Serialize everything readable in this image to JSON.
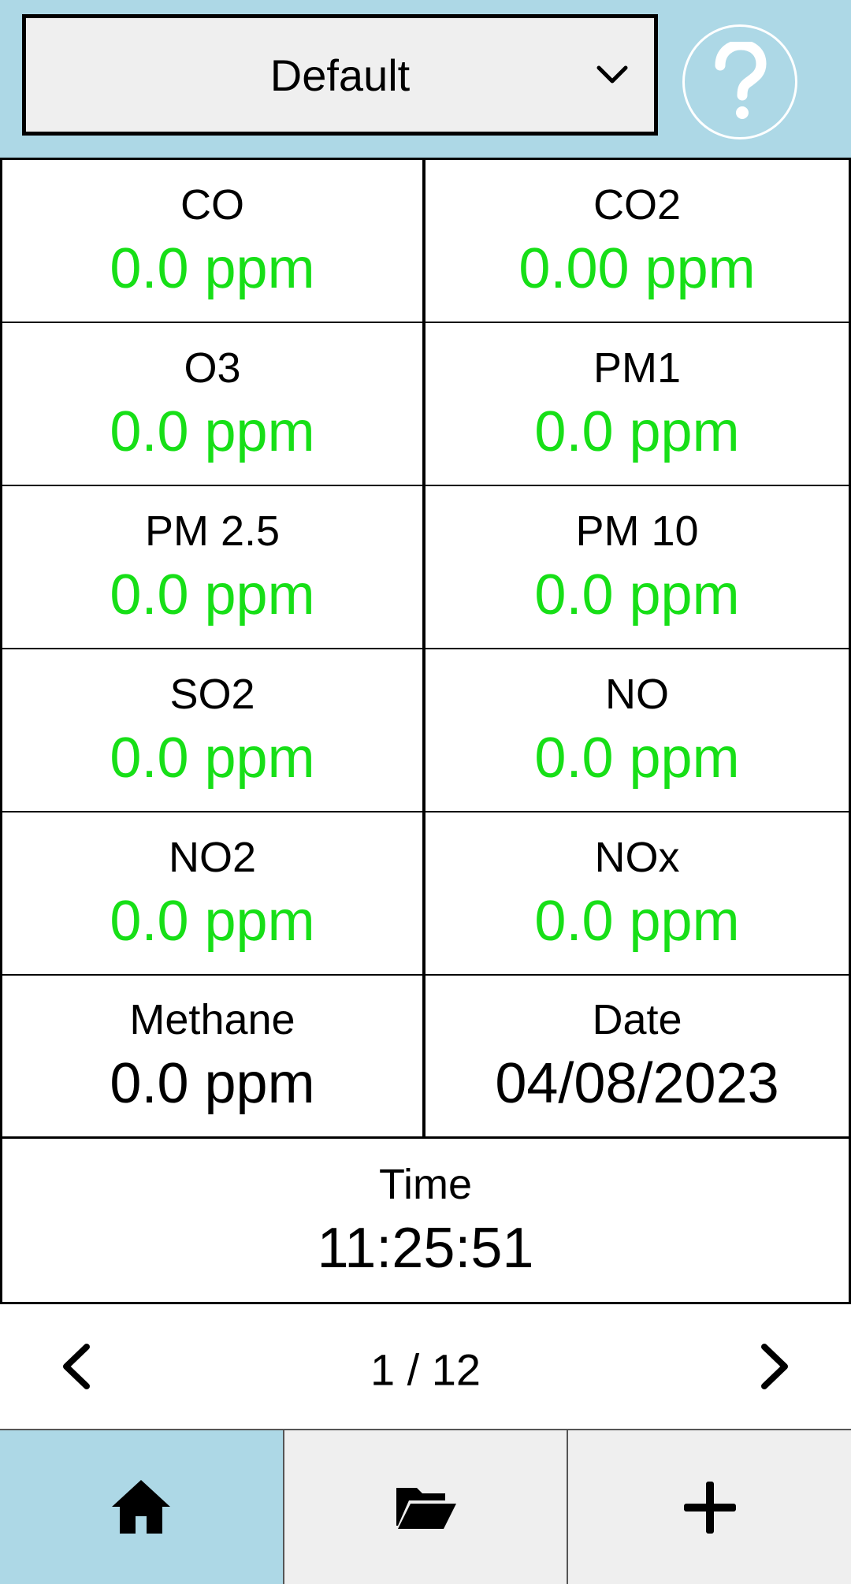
{
  "header": {
    "dropdown": {
      "selected": "Default"
    },
    "help_icon": "question-icon"
  },
  "readings": [
    {
      "label": "CO",
      "value": "0.0 ppm",
      "color": "#17df17"
    },
    {
      "label": "CO2",
      "value": "0.00 ppm",
      "color": "#17df17"
    },
    {
      "label": "O3",
      "value": "0.0 ppm",
      "color": "#17df17"
    },
    {
      "label": "PM1",
      "value": "0.0 ppm",
      "color": "#17df17"
    },
    {
      "label": "PM 2.5",
      "value": "0.0 ppm",
      "color": "#17df17"
    },
    {
      "label": "PM 10",
      "value": "0.0 ppm",
      "color": "#17df17"
    },
    {
      "label": "SO2",
      "value": "0.0 ppm",
      "color": "#17df17"
    },
    {
      "label": "NO",
      "value": "0.0 ppm",
      "color": "#17df17"
    },
    {
      "label": "NO2",
      "value": "0.0 ppm",
      "color": "#17df17"
    },
    {
      "label": "NOx",
      "value": "0.0 ppm",
      "color": "#17df17"
    },
    {
      "label": "Methane",
      "value": "0.0 ppm",
      "color": "#000000"
    },
    {
      "label": "Date",
      "value": "04/08/2023",
      "color": "#000000"
    }
  ],
  "time": {
    "label": "Time",
    "value": "11:25:51"
  },
  "pager": {
    "indicator": "1 / 12",
    "prev_icon": "chevron-left-icon",
    "next_icon": "chevron-right-icon"
  },
  "bottom_nav": {
    "items": [
      {
        "icon": "home-icon",
        "active": true
      },
      {
        "icon": "folder-open-icon",
        "active": false
      },
      {
        "icon": "plus-icon",
        "active": false
      }
    ]
  },
  "colors": {
    "accent": "#add8e6",
    "reading_ok": "#17df17",
    "nav_inactive": "#efefef"
  }
}
